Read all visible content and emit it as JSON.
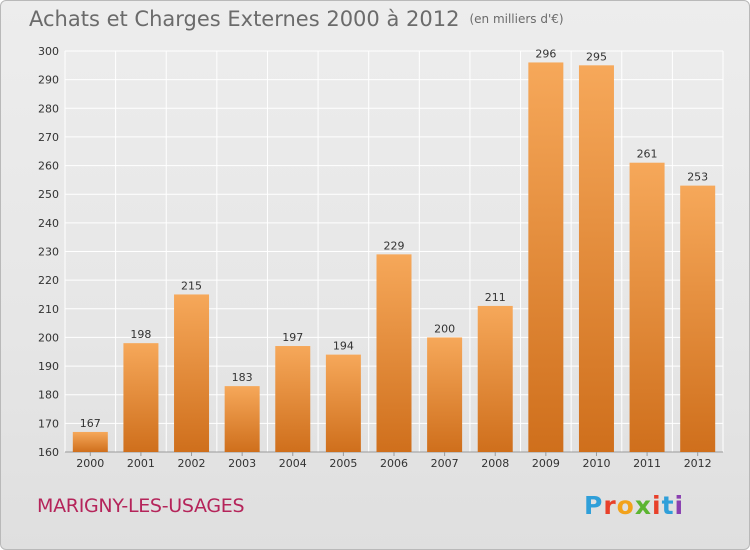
{
  "header": {
    "title": "Achats et Charges Externes 2000 à 2012",
    "unit": "(en milliers d'€)"
  },
  "commune": "MARIGNY-LES-USAGES",
  "brand": {
    "letters": [
      "P",
      "r",
      "o",
      "x",
      "i",
      "t",
      "i"
    ],
    "colors": [
      "#2f9fd9",
      "#e8402a",
      "#f2a21b",
      "#5cb531",
      "#e8402a",
      "#2f9fd9",
      "#8a3fb0"
    ]
  },
  "chart_data": {
    "type": "bar",
    "categories": [
      "2000",
      "2001",
      "2002",
      "2003",
      "2004",
      "2005",
      "2006",
      "2007",
      "2008",
      "2009",
      "2010",
      "2011",
      "2012"
    ],
    "values": [
      167,
      198,
      215,
      183,
      197,
      194,
      229,
      200,
      211,
      296,
      295,
      261,
      253
    ],
    "title": "Achats et Charges Externes 2000 à 2012",
    "subtitle": "(en milliers d'€)",
    "ylim": [
      160,
      300
    ],
    "yticks": [
      160,
      170,
      180,
      190,
      200,
      210,
      220,
      230,
      240,
      250,
      260,
      270,
      280,
      290,
      300
    ],
    "grid": true,
    "colors": {
      "bar_light": "#f6a85a",
      "bar_dark": "#cf6f1c",
      "grid": "#ffffff"
    }
  }
}
